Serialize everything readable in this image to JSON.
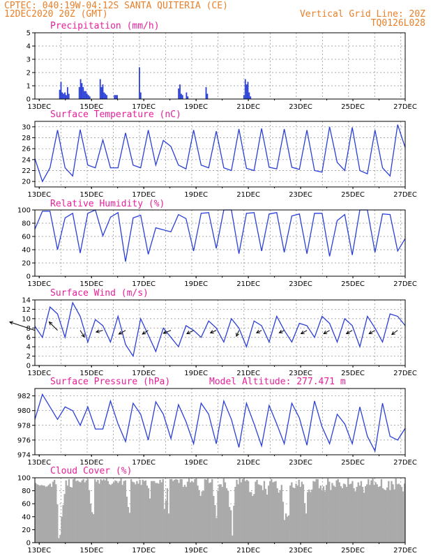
{
  "header": {
    "line1_left": "CPTEC:  040:19W-04:12S  SANTA QUITERIA (CE)",
    "line2_left": "12DEC2020 20Z (GMT)",
    "line2_right": "Vertical Grid Line: 20Z",
    "line3_right": "TQ0126L028"
  },
  "x_tick_labels": [
    "13DEC",
    "15DEC",
    "17DEC",
    "19DEC",
    "21DEC",
    "23DEC",
    "25DEC",
    "27DEC"
  ],
  "chart_data": [
    {
      "type": "bar",
      "title": "Precipitation (mm/h)",
      "ylim": [
        0,
        5
      ],
      "yticks": [
        0,
        1,
        2,
        3,
        4,
        5
      ],
      "x_unit": "days since 12DEC2020 20Z",
      "x": [
        0.95,
        1.0,
        1.05,
        1.1,
        1.15,
        1.2,
        1.25,
        1.3,
        1.7,
        1.75,
        1.8,
        1.85,
        1.9,
        1.95,
        2.0,
        2.05,
        2.1,
        2.5,
        2.55,
        2.6,
        2.65,
        2.7,
        2.75,
        3.05,
        3.1,
        3.15,
        4.0,
        4.05,
        5.5,
        5.55,
        5.6,
        5.65,
        5.8,
        5.85,
        6.55,
        6.6,
        8.0,
        8.05,
        8.1,
        8.15,
        8.2,
        8.25
      ],
      "values": [
        0.7,
        1.3,
        0.5,
        0.4,
        0.5,
        0.3,
        0.9,
        0.4,
        0.9,
        1.5,
        1.2,
        0.9,
        0.6,
        0.6,
        0.4,
        0.3,
        0.2,
        1.5,
        0.9,
        1.1,
        0.5,
        0.4,
        0.3,
        0.3,
        0.3,
        0.3,
        2.4,
        0.5,
        0.8,
        1.1,
        0.4,
        0.3,
        0.5,
        0.2,
        0.9,
        0.4,
        0.3,
        1.5,
        1.1,
        1.3,
        0.5,
        0.2
      ]
    },
    {
      "type": "line",
      "title": "Surface Temperature (nC)",
      "ylim": [
        19,
        31
      ],
      "yticks": [
        20,
        22,
        24,
        26,
        28,
        30
      ],
      "series": [
        {
          "values": [
            24.2,
            20.0,
            22.5,
            29.4,
            22.5,
            21.0,
            29.5,
            23.0,
            22.5,
            27.6,
            22.5,
            22.5,
            28.9,
            23.0,
            22.5,
            29.4,
            23.0,
            27.5,
            26.4,
            23.0,
            22.3,
            29.4,
            23.0,
            22.5,
            29.2,
            22.5,
            22.0,
            29.6,
            22.4,
            22.0,
            29.7,
            22.6,
            22.3,
            29.6,
            22.6,
            22.2,
            29.4,
            22.0,
            21.7,
            30.0,
            23.5,
            22.0,
            29.9,
            22.0,
            21.4,
            29.4,
            22.5,
            21.0,
            30.4,
            26.2
          ]
        }
      ]
    },
    {
      "type": "line",
      "title": "Relative Humidity (%)",
      "ylim": [
        0,
        100
      ],
      "yticks": [
        0,
        20,
        40,
        60,
        80,
        100
      ],
      "series": [
        {
          "values": [
            71,
            98,
            98,
            40,
            88,
            95,
            35,
            95,
            100,
            61,
            89,
            96,
            22,
            88,
            92,
            33,
            73,
            70,
            67,
            93,
            87,
            38,
            95,
            96,
            42,
            100,
            100,
            34,
            95,
            96,
            38,
            94,
            96,
            36,
            91,
            94,
            34,
            95,
            95,
            30,
            84,
            93,
            32,
            100,
            100,
            36,
            94,
            93,
            38,
            57
          ]
        }
      ]
    },
    {
      "type": "line",
      "title": "Surface Wind (m/s)",
      "ylim": [
        0,
        14
      ],
      "yticks": [
        0,
        2,
        4,
        6,
        8,
        10,
        12,
        14
      ],
      "series": [
        {
          "values": [
            8.4,
            6.0,
            12.5,
            11.0,
            6.0,
            13.4,
            10.5,
            5.0,
            9.8,
            8.5,
            5.0,
            10.5,
            4.5,
            2.0,
            10.0,
            6.5,
            3.0,
            8.0,
            6.0,
            4.0,
            8.5,
            7.5,
            6.0,
            9.5,
            8.0,
            5.0,
            10.0,
            8.0,
            4.0,
            9.5,
            8.5,
            5.0,
            10.5,
            7.5,
            5.0,
            9.0,
            8.5,
            6.0,
            10.5,
            9.0,
            5.0,
            10.0,
            8.5,
            4.0,
            10.5,
            8.0,
            5.0,
            11.0,
            10.5,
            8.5
          ]
        }
      ],
      "arrows_u": [
        -6.0,
        0.2,
        2.0,
        -2.0,
        0.5,
        1.4,
        1.0,
        -1.6,
        2.0,
        -1.6,
        -1.6,
        -1.0,
        -1.6,
        -1.6,
        -1.3,
        -1.4,
        -0.6,
        -0.6,
        -1.8,
        -1.0,
        -0.7,
        -1.6,
        -1.2,
        -1.2,
        -1.4,
        -0.8,
        -1.2,
        -0.6,
        -1.6,
        -1.4,
        -1.2,
        -0.9,
        -1.5,
        -1.2,
        -1.4,
        -1.4,
        -1.4,
        -1.4,
        -1.4,
        -1.4,
        -1.4,
        -1.4,
        -1.4,
        -1.4,
        -1.4,
        -1.4,
        -1.4,
        -1.4,
        -1.4,
        -1.4
      ],
      "arrows_v": [
        2.0,
        -1.7,
        -1.8,
        2.0,
        -1.0,
        -1.6,
        -1.6,
        2.0,
        -1.0,
        -0.4,
        -0.8,
        -1.2,
        -0.9,
        -0.9,
        -0.4,
        -0.9,
        -0.8,
        -0.6,
        -0.7,
        -1.3,
        -1.1,
        -0.8,
        -1.2,
        -1.6,
        -0.6,
        -1.6,
        -1.0,
        -1.4,
        -1.0,
        -1.0,
        -0.6,
        -1.4,
        -1.0,
        -0.6,
        -1.6,
        -0.4,
        -0.8,
        -0.6,
        -1.2,
        -0.8,
        -1.0,
        -1.5,
        -0.8,
        -0.6,
        -1.4,
        -0.8,
        -0.6,
        -1.2,
        -1.0,
        -1.2
      ]
    },
    {
      "type": "line",
      "title": "Surface Pressure (hPa)",
      "subtitle": "Model Altitude: 277.471 m",
      "ylim": [
        974,
        983
      ],
      "yticks": [
        974,
        976,
        978,
        980,
        982
      ],
      "series": [
        {
          "values": [
            978.8,
            982.2,
            980.5,
            978.8,
            980.5,
            980.0,
            978.0,
            980.5,
            977.5,
            977.5,
            981.3,
            978.2,
            975.8,
            981.0,
            979.5,
            976.0,
            981.2,
            979.5,
            976.2,
            980.8,
            978.5,
            975.5,
            981.0,
            979.5,
            975.5,
            981.3,
            978.8,
            975.0,
            981.0,
            978.2,
            975.2,
            980.7,
            978.2,
            975.5,
            981.0,
            979.0,
            975.3,
            981.3,
            977.8,
            975.5,
            979.5,
            978.2,
            975.5,
            980.5,
            976.5,
            974.5,
            981.0,
            976.5,
            976.0,
            977.6
          ]
        }
      ]
    },
    {
      "type": "bar",
      "title": "Cloud Cover (%)",
      "ylim": [
        0,
        100
      ],
      "yticks": [
        0,
        20,
        40,
        60,
        80,
        100
      ],
      "values_per_day": 12,
      "values": [
        92,
        90,
        89,
        88,
        89,
        88,
        88,
        86,
        87,
        89,
        91,
        86,
        94,
        97,
        90,
        59,
        7,
        12,
        40,
        58,
        75,
        96,
        88,
        98,
        86,
        85,
        98,
        99,
        95,
        96,
        94,
        93,
        96,
        98,
        93,
        96,
        98,
        81,
        60,
        47,
        44,
        98,
        94,
        97,
        91,
        98,
        96,
        98,
        96,
        99,
        95,
        90,
        89,
        91,
        93,
        96,
        95,
        92,
        95,
        99,
        89,
        95,
        96,
        71,
        55,
        46,
        98,
        94,
        93,
        90,
        95,
        91,
        97,
        89,
        97,
        95,
        96,
        88,
        84,
        68,
        95,
        95,
        95,
        92,
        92,
        91,
        97,
        93,
        98,
        52,
        65,
        84,
        45,
        98,
        98,
        95,
        97,
        98,
        97,
        92,
        98,
        98,
        86,
        89,
        86,
        94,
        99,
        93,
        95,
        93,
        98,
        99,
        88,
        81,
        72,
        79,
        80,
        98,
        97,
        99,
        92,
        93,
        98,
        72,
        58,
        38,
        80,
        90,
        90,
        86,
        99,
        93,
        84,
        80,
        55,
        50,
        11,
        57,
        86,
        97,
        90,
        99,
        93,
        98,
        99,
        95,
        97,
        95,
        78,
        78,
        72,
        75,
        94,
        97,
        90,
        89,
        88,
        81,
        95,
        83,
        74,
        88,
        95,
        98,
        93,
        94,
        95,
        84,
        77,
        81,
        89,
        63,
        35,
        45,
        40,
        42,
        88,
        93,
        85,
        84,
        91,
        88,
        97,
        86,
        94,
        90,
        61,
        45,
        78,
        82,
        78,
        82,
        95,
        94,
        98,
        98,
        84,
        88,
        81,
        87,
        79,
        89,
        99,
        94,
        81,
        92,
        88,
        86,
        96,
        98,
        93,
        87,
        84,
        91,
        90,
        86,
        99,
        90,
        91,
        95,
        84,
        79,
        86,
        93,
        88,
        95,
        86,
        77,
        87,
        90,
        98,
        89,
        96,
        99,
        89,
        93,
        90,
        86,
        87,
        98,
        84,
        82,
        81,
        85,
        95,
        81,
        95,
        90,
        82,
        99,
        90,
        91,
        89,
        86,
        79,
        91
      ]
    }
  ]
}
